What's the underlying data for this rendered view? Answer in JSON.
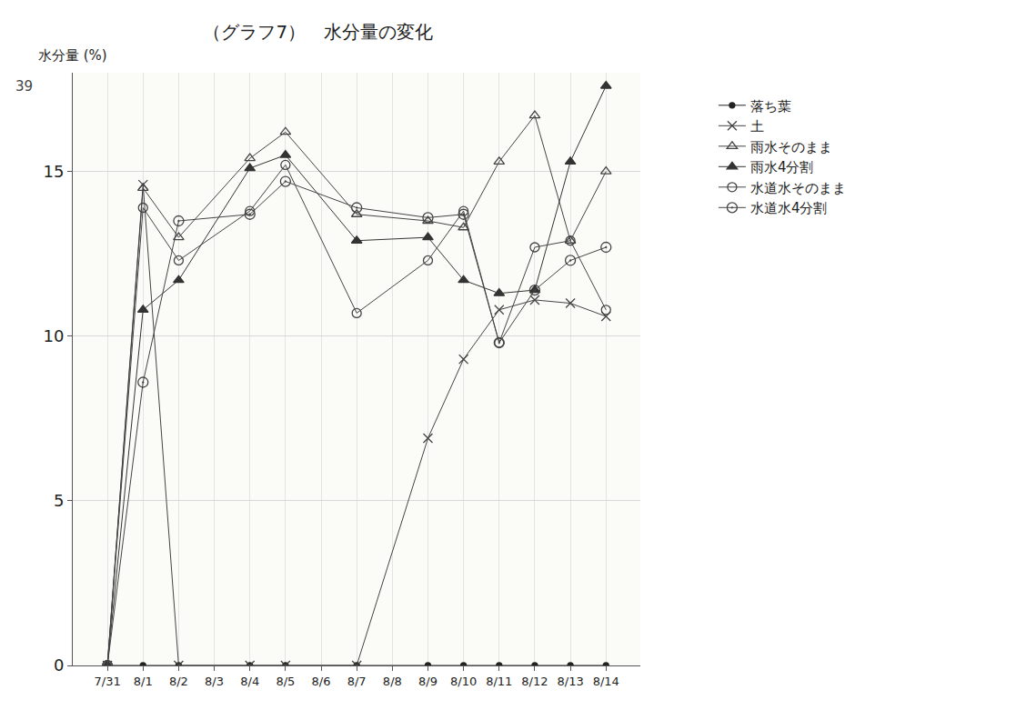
{
  "chart_data": {
    "type": "line",
    "title": "（グラフ7）　水分量の変化",
    "y_label": "水分量 (%)",
    "annotations": [
      "39"
    ],
    "categories": [
      "7/31",
      "8/1",
      "8/2",
      "8/3",
      "8/4",
      "8/5",
      "8/6",
      "8/7",
      "8/8",
      "8/9",
      "8/10",
      "8/11",
      "8/12",
      "8/13",
      "8/14"
    ],
    "series": [
      {
        "name": "落ち葉",
        "color": "#222222",
        "marker": "dot",
        "values": [
          0,
          0,
          0,
          null,
          0,
          0,
          null,
          0,
          null,
          0,
          0,
          0,
          0,
          0,
          0
        ]
      },
      {
        "name": "土",
        "color": "#444444",
        "marker": "x",
        "values": [
          0,
          14.6,
          0,
          null,
          0,
          0,
          null,
          0,
          null,
          6.9,
          9.3,
          10.8,
          11.1,
          11.0,
          10.6
        ]
      },
      {
        "name": "雨水そのまま",
        "color": "#444444",
        "marker": "triangle-open",
        "values": [
          0,
          14.5,
          13.0,
          null,
          15.4,
          16.2,
          null,
          13.7,
          null,
          13.5,
          13.3,
          15.3,
          16.7,
          12.9,
          15.0
        ]
      },
      {
        "name": "雨水4分割",
        "color": "#333333",
        "marker": "triangle",
        "values": [
          0,
          10.8,
          11.7,
          null,
          15.1,
          15.5,
          null,
          12.9,
          null,
          13.0,
          11.7,
          11.3,
          11.4,
          15.3,
          17.6
        ]
      },
      {
        "name": "水道水そのまま",
        "color": "#444444",
        "marker": "circle-open",
        "values": [
          0,
          13.9,
          12.3,
          null,
          13.8,
          15.2,
          null,
          10.7,
          null,
          12.3,
          13.8,
          9.8,
          12.7,
          12.9,
          10.8
        ]
      },
      {
        "name": "水道水4分割",
        "color": "#444444",
        "marker": "circle-open-dot",
        "values": [
          0,
          8.6,
          13.5,
          null,
          13.7,
          14.7,
          null,
          13.9,
          null,
          13.6,
          13.7,
          9.8,
          11.4,
          12.3,
          12.7
        ]
      }
    ],
    "ylim": [
      0,
      18
    ],
    "yticks": [
      0,
      5,
      10,
      15
    ],
    "grid": true,
    "legend": "right"
  }
}
